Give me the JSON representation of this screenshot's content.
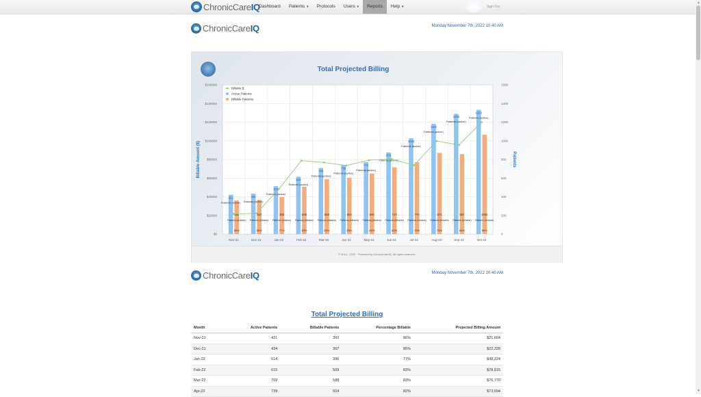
{
  "app": {
    "logo_main": "ChronicCare",
    "logo_bold": "IQ"
  },
  "navbar": {
    "items": [
      {
        "label": "Dashboard",
        "dropdown": false
      },
      {
        "label": "Patients",
        "dropdown": true
      },
      {
        "label": "Protocols",
        "dropdown": false
      },
      {
        "label": "Users",
        "dropdown": true
      },
      {
        "label": "Reports",
        "dropdown": false,
        "active": true
      },
      {
        "label": "Help",
        "dropdown": true
      }
    ],
    "caret": "▾",
    "sign_out": "Sign Out"
  },
  "header": {
    "date": "Monday November 7th, 2022 10:40 AM"
  },
  "chart_data": {
    "type": "bar",
    "title": "Total Projected Billing",
    "ylabel": "Billable Amount ($)",
    "y2label": "Patients",
    "categories": [
      "Nov-21",
      "Dec-21",
      "Jan-22",
      "Feb-22",
      "Mar-22",
      "Apr-22",
      "May-22",
      "Jun-22",
      "Jul-22",
      "Aug-22",
      "Sep-22",
      "Oct-22"
    ],
    "ylim": [
      0,
      160000
    ],
    "y_ticks": [
      "$0",
      "$20000",
      "$40000",
      "$60000",
      "$80000",
      "$100000",
      "$120000",
      "$140000",
      "$160000"
    ],
    "y2lim": [
      0,
      1600
    ],
    "y2_ticks": [
      "0",
      "200",
      "400",
      "600",
      "800",
      "1000",
      "1200",
      "1400",
      "1600"
    ],
    "grid": true,
    "legend_position": "top-left",
    "series": [
      {
        "name": "Billable $",
        "kind": "line",
        "axis": "left",
        "color": "#8fd17a",
        "values": [
          21604,
          22228,
          48224,
          78815,
          76770,
          73594,
          79200,
          80400,
          73800,
          99800,
          95600,
          120000
        ]
      },
      {
        "name": "Active Patients",
        "kind": "bar",
        "axis": "right",
        "color": "#8ec3f2",
        "value_label": "Patients (active)",
        "values": [
          421,
          434,
          514,
          615,
          709,
          739,
          772,
          876,
          1028,
          1182,
          1290,
          1333
        ]
      },
      {
        "name": "Billable Patients",
        "kind": "bar",
        "axis": "right",
        "color": "#f5ac7d",
        "value_label": "Patients (billable)",
        "values": [
          360,
          367,
          396,
          509,
          588,
          604,
          649,
          717,
          770,
          871,
          857,
          1066
        ],
        "percent_labels": [
          "86%",
          "85%",
          "77%",
          "83%",
          "83%",
          "82%",
          "84%",
          "82%",
          "75%",
          "74%",
          "66%",
          "80%"
        ]
      }
    ]
  },
  "footer": {
    "copyright": "© 2014 - 2022 · Powered by ChronicCareIQ. All rights reserved."
  },
  "second_header": {
    "date": "Monday November 7th, 2022 10:40 AM"
  },
  "table": {
    "title": "Total Projected Billing",
    "headers": [
      "Month",
      "Active Patients",
      "Billable Patients",
      "Percentage Billable",
      "Projected Billing Amount"
    ],
    "rows": [
      [
        "Nov-21",
        "421",
        "360",
        "86%",
        "$21,604"
      ],
      [
        "Dec-21",
        "434",
        "367",
        "85%",
        "$22,228"
      ],
      [
        "Jan-22",
        "514",
        "396",
        "77%",
        "$48,224"
      ],
      [
        "Feb-22",
        "615",
        "509",
        "83%",
        "$78,815"
      ],
      [
        "Mar-22",
        "709",
        "588",
        "83%",
        "$76,770"
      ],
      [
        "Apr-22",
        "739",
        "604",
        "82%",
        "$73,594"
      ]
    ]
  }
}
